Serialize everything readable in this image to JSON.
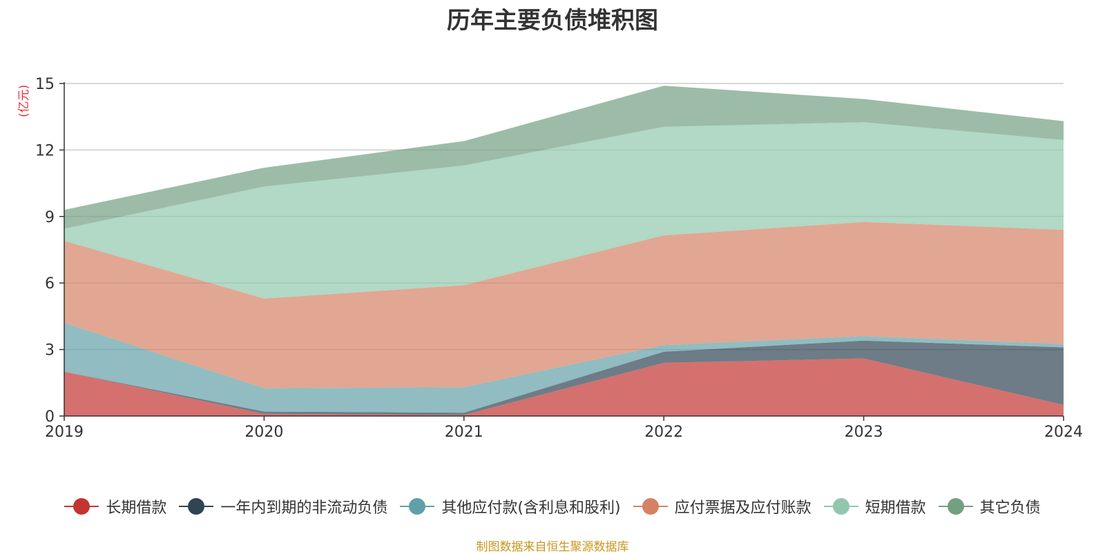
{
  "chart_data": {
    "type": "area",
    "stacked": true,
    "title": "历年主要负债堆积图",
    "unit_label": "(亿元)",
    "categories": [
      "2019",
      "2020",
      "2021",
      "2022",
      "2023",
      "2024"
    ],
    "ylim": [
      0,
      15
    ],
    "yticks": [
      "0",
      "3",
      "6",
      "9",
      "12",
      "15"
    ],
    "grid": true,
    "legend_position": "bottom",
    "series": [
      {
        "name": "长期借款",
        "color": "#c23531",
        "values": [
          2.0,
          0.1,
          0.05,
          2.4,
          2.6,
          0.5
        ]
      },
      {
        "name": "一年内到期的非流动负债",
        "color": "#2f4554",
        "values": [
          0.0,
          0.1,
          0.1,
          0.5,
          0.8,
          2.6
        ]
      },
      {
        "name": "其他应付款(含利息和股利)",
        "color": "#61a0a8",
        "values": [
          2.2,
          1.05,
          1.15,
          0.3,
          0.2,
          0.15
        ]
      },
      {
        "name": "应付票据及应付账款",
        "color": "#d48265",
        "values": [
          3.7,
          4.05,
          4.6,
          4.95,
          5.15,
          5.15
        ]
      },
      {
        "name": "短期借款",
        "color": "#91c7ae",
        "values": [
          0.55,
          5.05,
          5.4,
          4.9,
          4.5,
          4.05
        ]
      },
      {
        "name": "其它负债",
        "color": "#749f83",
        "values": [
          0.85,
          0.85,
          1.1,
          1.85,
          1.05,
          0.85
        ]
      }
    ]
  },
  "source_note": "制图数据来自恒生聚源数据库"
}
